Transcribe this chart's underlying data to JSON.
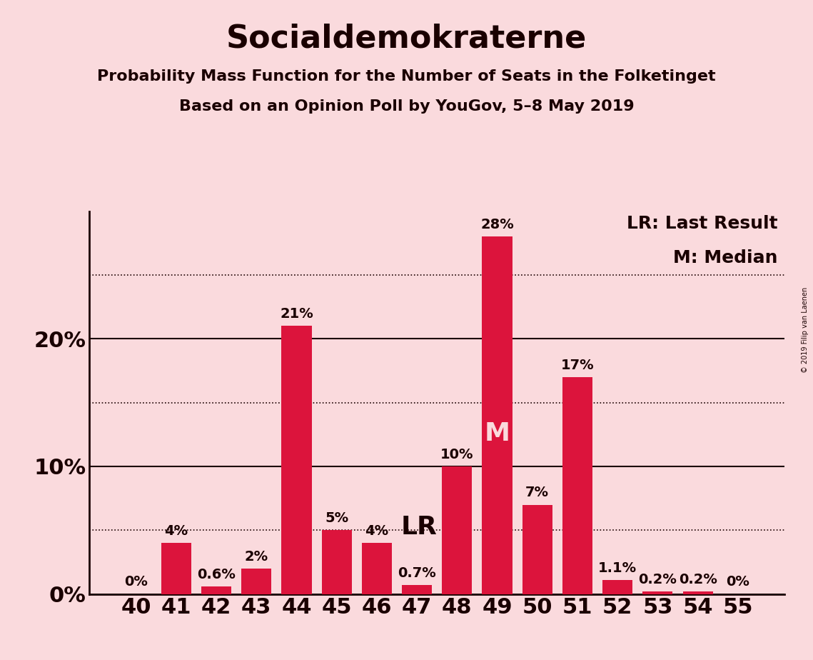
{
  "title": "Socialdemokraterne",
  "subtitle1": "Probability Mass Function for the Number of Seats in the Folketinget",
  "subtitle2": "Based on an Opinion Poll by YouGov, 5–8 May 2019",
  "copyright": "© 2019 Filip van Laenen",
  "categories": [
    40,
    41,
    42,
    43,
    44,
    45,
    46,
    47,
    48,
    49,
    50,
    51,
    52,
    53,
    54,
    55
  ],
  "values": [
    0.0,
    4.0,
    0.6,
    2.0,
    21.0,
    5.0,
    4.0,
    0.7,
    10.0,
    28.0,
    7.0,
    17.0,
    1.1,
    0.2,
    0.2,
    0.0
  ],
  "bar_color": "#DC143C",
  "background_color": "#FADADD",
  "text_color": "#1a0000",
  "lr_seat": 47,
  "median_seat": 49,
  "ylim": [
    0,
    30
  ],
  "solid_yticks": [
    0,
    10,
    20
  ],
  "dotted_yticks": [
    5,
    15,
    25
  ],
  "bar_label_map": {
    "40": "0%",
    "41": "4%",
    "42": "0.6%",
    "43": "2%",
    "44": "21%",
    "45": "5%",
    "46": "4%",
    "47": "0.7%",
    "48": "10%",
    "49": "28%",
    "50": "7%",
    "51": "17%",
    "52": "1.1%",
    "53": "0.2%",
    "54": "0.2%",
    "55": "0%"
  },
  "title_fontsize": 32,
  "subtitle_fontsize": 16,
  "axis_label_fontsize": 22,
  "bar_label_fontsize": 14,
  "legend_fontsize": 18,
  "marker_fontsize": 26
}
